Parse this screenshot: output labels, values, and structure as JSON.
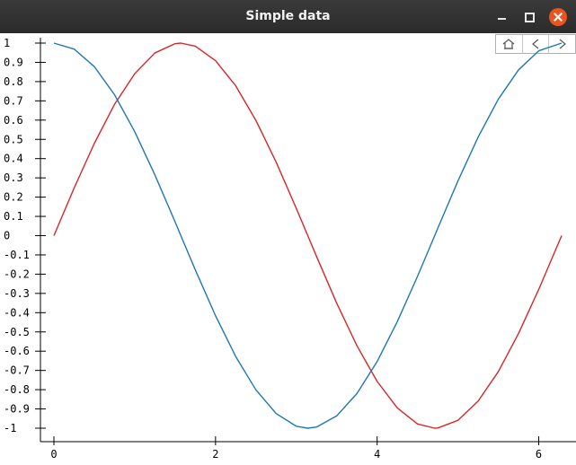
{
  "window": {
    "title": "Simple data",
    "controls": {
      "minimize": "minimize-icon",
      "maximize": "maximize-icon",
      "close": "close-icon"
    },
    "close_color": "#e95420"
  },
  "toolbar": {
    "icons": [
      "home-icon",
      "back-icon",
      "forward-icon"
    ]
  },
  "chart_data": {
    "type": "line",
    "title": "Simple data",
    "xlabel": "",
    "ylabel": "",
    "xlim": [
      0,
      6.283
    ],
    "ylim": [
      -1,
      1
    ],
    "x_ticks": [
      0,
      2,
      4,
      6
    ],
    "x_tick_labels": [
      "0",
      "2",
      "4",
      "6"
    ],
    "y_ticks": [
      1,
      0.9,
      0.8,
      0.7,
      0.6,
      0.5,
      0.4,
      0.3,
      0.2,
      0.1,
      0,
      -0.1,
      -0.2,
      -0.3,
      -0.4,
      -0.5,
      -0.6,
      -0.7,
      -0.8,
      -0.9,
      -1
    ],
    "y_tick_labels": [
      "1",
      "0.9",
      "0.8",
      "0.7",
      "0.6",
      "0.5",
      "0.4",
      "0.3",
      "0.2",
      "0.1",
      "0",
      "-0.1",
      "-0.2",
      "-0.3",
      "-0.4",
      "-0.5",
      "-0.6",
      "-0.7",
      "-0.8",
      "-0.9",
      "-1"
    ],
    "grid": false,
    "legend": "none",
    "series": [
      {
        "color": "#d62728",
        "x": [
          0,
          0.25,
          0.5,
          0.75,
          1.0,
          1.25,
          1.5,
          1.5708,
          1.75,
          2.0,
          2.25,
          2.5,
          2.75,
          3.0,
          3.1416,
          3.25,
          3.5,
          3.75,
          4.0,
          4.25,
          4.5,
          4.7124,
          4.75,
          5.0,
          5.25,
          5.5,
          5.75,
          6.0,
          6.2832
        ],
        "y": [
          0,
          0.247,
          0.479,
          0.682,
          0.841,
          0.949,
          0.997,
          1.0,
          0.984,
          0.909,
          0.778,
          0.598,
          0.382,
          0.141,
          0.0,
          -0.108,
          -0.351,
          -0.572,
          -0.757,
          -0.895,
          -0.978,
          -1.0,
          -0.999,
          -0.959,
          -0.859,
          -0.706,
          -0.508,
          -0.279,
          0.0
        ]
      },
      {
        "color": "#1f77b4",
        "x": [
          0,
          0.25,
          0.5,
          0.75,
          1.0,
          1.25,
          1.5,
          1.5708,
          1.75,
          2.0,
          2.25,
          2.5,
          2.75,
          3.0,
          3.1416,
          3.25,
          3.5,
          3.75,
          4.0,
          4.25,
          4.5,
          4.7124,
          4.75,
          5.0,
          5.25,
          5.5,
          5.75,
          6.0,
          6.2832
        ],
        "y": [
          1.0,
          0.969,
          0.878,
          0.732,
          0.54,
          0.315,
          0.071,
          0.0,
          -0.178,
          -0.416,
          -0.628,
          -0.801,
          -0.924,
          -0.99,
          -1.0,
          -0.994,
          -0.936,
          -0.82,
          -0.654,
          -0.446,
          -0.211,
          0.0,
          0.038,
          0.284,
          0.512,
          0.709,
          0.861,
          0.96,
          1.0
        ]
      }
    ]
  }
}
